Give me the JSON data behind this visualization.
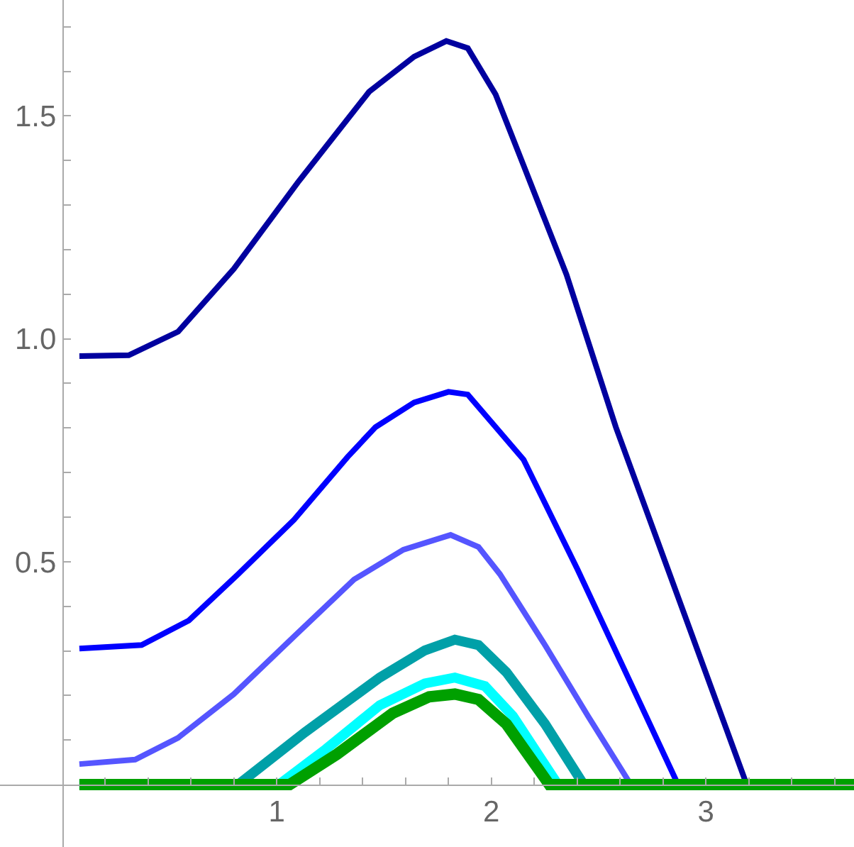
{
  "chart_data": {
    "type": "line",
    "marker": "none",
    "line_style": "solid",
    "xlim": [
      -0.29,
      3.69
    ],
    "ylim": [
      -0.14,
      1.76
    ],
    "xticks": [
      {
        "value": 0.2,
        "label": null
      },
      {
        "value": 0.4,
        "label": null
      },
      {
        "value": 0.6,
        "label": null
      },
      {
        "value": 0.8,
        "label": null
      },
      1,
      {
        "value": 1.2,
        "label": null
      },
      {
        "value": 1.4,
        "label": null
      },
      {
        "value": 1.6,
        "label": null
      },
      {
        "value": 1.8,
        "label": null
      },
      2,
      {
        "value": 2.2,
        "label": null
      },
      {
        "value": 2.4,
        "label": null
      },
      {
        "value": 2.6,
        "label": null
      },
      {
        "value": 2.8,
        "label": null
      },
      3,
      {
        "value": 3.2,
        "label": null
      },
      {
        "value": 3.4,
        "label": null
      },
      {
        "value": 3.6,
        "label": null
      }
    ],
    "yticks": [
      {
        "value": 0.1,
        "label": null
      },
      {
        "value": 0.2,
        "label": null
      },
      {
        "value": 0.3,
        "label": null
      },
      {
        "value": 0.4,
        "label": null
      },
      {
        "value": 0.5,
        "label": "0.5"
      },
      {
        "value": 0.6,
        "label": null
      },
      {
        "value": 0.7,
        "label": null
      },
      {
        "value": 0.8,
        "label": null
      },
      {
        "value": 0.9,
        "label": null
      },
      {
        "value": 1.0,
        "label": "1.0"
      },
      {
        "value": 1.1,
        "label": null
      },
      {
        "value": 1.2,
        "label": null
      },
      {
        "value": 1.3,
        "label": null
      },
      {
        "value": 1.4,
        "label": null
      },
      {
        "value": 1.5,
        "label": "1.5"
      },
      {
        "value": 1.6,
        "label": null
      },
      {
        "value": 1.7,
        "label": null
      }
    ],
    "series": [
      {
        "color": "#00009f",
        "x": [
          0.08,
          0.31,
          0.54,
          0.8,
          1.1,
          1.43,
          1.64,
          1.79,
          1.89,
          2.02,
          2.15,
          2.35,
          2.58,
          3.19
        ],
        "values": [
          0.961,
          0.963,
          1.016,
          1.157,
          1.352,
          1.554,
          1.633,
          1.668,
          1.652,
          1.548,
          1.389,
          1.144,
          0.802,
          0
        ]
      },
      {
        "color": "#0000ff",
        "x": [
          0.08,
          0.37,
          0.59,
          0.82,
          1.08,
          1.33,
          1.46,
          1.64,
          1.8,
          1.89,
          2.02,
          2.15,
          2.4,
          2.65,
          2.87
        ],
        "values": [
          0.305,
          0.313,
          0.368,
          0.472,
          0.594,
          0.735,
          0.802,
          0.857,
          0.881,
          0.875,
          0.802,
          0.729,
          0.484,
          0.227,
          0
        ]
      },
      {
        "color": "#5555ff",
        "x": [
          0.08,
          0.34,
          0.54,
          0.8,
          1.08,
          1.36,
          1.59,
          1.81,
          1.94,
          2.04,
          2.25,
          2.45,
          2.65
        ],
        "values": [
          0.046,
          0.056,
          0.105,
          0.203,
          0.332,
          0.46,
          0.527,
          0.56,
          0.533,
          0.472,
          0.313,
          0.154,
          0
        ]
      },
      {
        "color": "#00a0a8",
        "x": [
          0.08,
          0.82,
          1.13,
          1.48,
          1.69,
          1.83,
          1.94,
          2.07,
          2.25,
          2.43
        ],
        "values": [
          0,
          0,
          0.117,
          0.24,
          0.301,
          0.325,
          0.313,
          0.252,
          0.136,
          0
        ]
      },
      {
        "color": "#00ffff",
        "x": [
          0.08,
          1.01,
          1.23,
          1.48,
          1.69,
          1.83,
          1.97,
          2.1,
          2.31
        ],
        "values": [
          0,
          0,
          0.08,
          0.178,
          0.227,
          0.24,
          0.221,
          0.154,
          0
        ]
      },
      {
        "color": "#00a000",
        "x": [
          0.08,
          1.06,
          1.28,
          1.54,
          1.71,
          1.83,
          1.94,
          2.07,
          2.27,
          3.69
        ],
        "values": [
          0,
          0,
          0.068,
          0.16,
          0.197,
          0.203,
          0.191,
          0.136,
          0,
          0
        ]
      }
    ]
  }
}
